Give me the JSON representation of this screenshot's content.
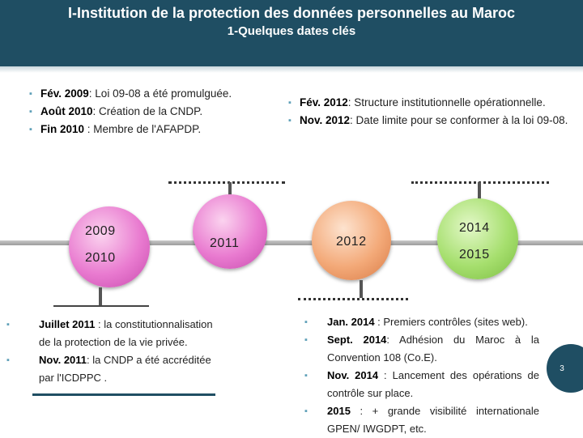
{
  "header": {
    "title": "I-Institution de la protection des données personnelles au Maroc",
    "subtitle": "1-Quelques dates clés"
  },
  "events_top_left": [
    {
      "date": "Fév. 2009",
      "text": ": Loi 09-08 a été promulguée."
    },
    {
      "date": "Août 2010",
      "text": ": Création de la CNDP."
    },
    {
      "date": "Fin 2010",
      "text": " : Membre de l'AFAPDP."
    }
  ],
  "events_top_right": [
    {
      "date": "Fév. 2012",
      "text": ": Structure institutionnelle opérationnelle."
    },
    {
      "date": "Nov. 2012",
      "text": ": Date limite pour se conformer à la loi 09-08."
    }
  ],
  "timeline": {
    "years": {
      "y2009": "2009",
      "y2010": "2010",
      "y2011": "2011",
      "y2012": "2012",
      "y2014": "2014",
      "y2015": "2015"
    }
  },
  "events_bottom_left": [
    {
      "date": "Juillet 2011",
      "text": " : la constitutionnalisation de la protection de la vie privée."
    },
    {
      "date": "Nov. 2011",
      "text": ": la CNDP a été accréditée par l'ICDPPC ."
    }
  ],
  "events_bottom_right": [
    {
      "date": "Jan. 2014",
      "text": " : Premiers contrôles (sites web)."
    },
    {
      "date": "Sept. 2014",
      "text": ": Adhésion du Maroc à la Convention 108 (Co.E)."
    },
    {
      "date": "Nov. 2014",
      "text": " : Lancement des opérations de contrôle sur place."
    },
    {
      "date": "2015",
      "text": " : + grande visibilité internationale GPEN/ IWGDPT, etc."
    }
  ],
  "page_number": "3",
  "colors": {
    "header": "#1f4e63",
    "bullet": "#5fa0b8",
    "pink": "#e97bd0",
    "orange": "#f3a978",
    "green": "#a6df6e"
  }
}
